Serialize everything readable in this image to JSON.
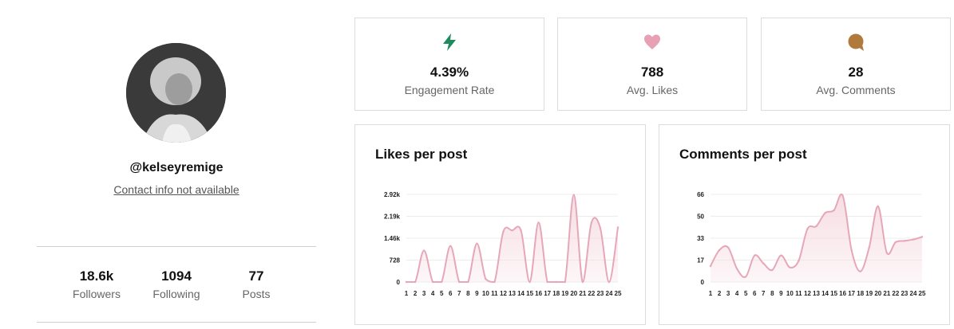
{
  "profile": {
    "handle": "@kelseyremige",
    "contact": "Contact info not available",
    "stats": [
      {
        "value": "18.6k",
        "label": "Followers"
      },
      {
        "value": "1094",
        "label": "Following"
      },
      {
        "value": "77",
        "label": "Posts"
      }
    ]
  },
  "metrics": [
    {
      "value": "4.39%",
      "label": "Engagement Rate",
      "icon": "lightning-icon",
      "color": "#1e8a5e"
    },
    {
      "value": "788",
      "label": "Avg. Likes",
      "icon": "heart-icon",
      "color": "#e8a0b4"
    },
    {
      "value": "28",
      "label": "Avg. Comments",
      "icon": "comment-icon",
      "color": "#b07a3c"
    }
  ],
  "colors": {
    "line": "#e6a7b8",
    "fill": "#f6dde4"
  },
  "chart_data": [
    {
      "type": "area",
      "title": "Likes per post",
      "x": [
        "1",
        "2",
        "3",
        "4",
        "5",
        "6",
        "7",
        "8",
        "9",
        "10",
        "11",
        "12",
        "13",
        "14",
        "15",
        "16",
        "17",
        "18",
        "19",
        "20",
        "21",
        "22",
        "23",
        "24",
        "25"
      ],
      "y_ticks": [
        "0",
        "728",
        "1.46k",
        "2.19k",
        "2.92k"
      ],
      "ylim": [
        0,
        2920
      ],
      "values": [
        0,
        0,
        1050,
        0,
        0,
        1200,
        0,
        0,
        1280,
        100,
        0,
        1680,
        1720,
        1720,
        0,
        1980,
        0,
        0,
        0,
        2900,
        0,
        1980,
        1800,
        0,
        1820
      ]
    },
    {
      "type": "area",
      "title": "Comments per post",
      "x": [
        "1",
        "2",
        "3",
        "4",
        "5",
        "6",
        "7",
        "8",
        "9",
        "10",
        "11",
        "12",
        "13",
        "14",
        "15",
        "16",
        "17",
        "18",
        "19",
        "20",
        "21",
        "22",
        "23",
        "24",
        "25"
      ],
      "y_ticks": [
        "0",
        "17",
        "33",
        "50",
        "66"
      ],
      "ylim": [
        0,
        66
      ],
      "values": [
        12,
        24,
        26,
        10,
        4,
        20,
        14,
        9,
        20,
        11,
        16,
        40,
        42,
        52,
        54,
        65,
        24,
        8,
        26,
        57,
        22,
        30,
        31,
        32,
        34
      ]
    }
  ]
}
